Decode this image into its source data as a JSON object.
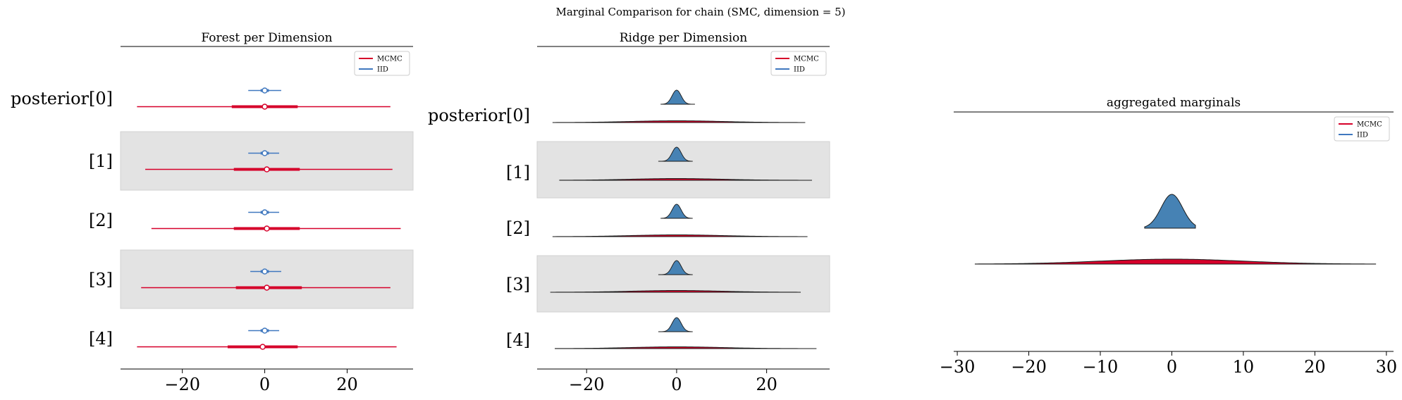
{
  "figure": {
    "suptitle": "Marginal Comparison for chain (SMC, dimension = 5)"
  },
  "colors": {
    "mcmc": "#d6002a",
    "iid": "#4078bf",
    "band": "#e3e3e3",
    "axis": "#000000"
  },
  "chart_data": [
    {
      "type": "forest",
      "title": "Forest per Dimension",
      "rows": [
        "posterior[0]",
        "[1]",
        "[2]",
        "[3]",
        "[4]"
      ],
      "shaded_rows": [
        1,
        3
      ],
      "xlim": [
        -35,
        36
      ],
      "xticks": [
        -20,
        0,
        20
      ],
      "xtick_labels": [
        "−20",
        "0",
        "20"
      ],
      "legend": {
        "placement": "upper right",
        "entries": [
          "MCMC",
          "IID"
        ]
      },
      "series": [
        {
          "name": "MCMC",
          "median": [
            0,
            0.5,
            0.5,
            0.5,
            -0.5
          ],
          "hdi_50": [
            [
              -8,
              8
            ],
            [
              -7.5,
              8.5
            ],
            [
              -7.5,
              8.5
            ],
            [
              -7,
              9
            ],
            [
              -9,
              8
            ]
          ],
          "hdi_94": [
            [
              -31,
              30.5
            ],
            [
              -29,
              31
            ],
            [
              -27.5,
              33
            ],
            [
              -30,
              30.5
            ],
            [
              -31,
              32
            ]
          ]
        },
        {
          "name": "IID",
          "median": [
            0,
            0,
            0,
            0,
            0
          ],
          "hdi_50": [
            [
              -1,
              1
            ],
            [
              -1,
              1
            ],
            [
              -1,
              1
            ],
            [
              -1,
              1
            ],
            [
              -1,
              1
            ]
          ],
          "hdi_94": [
            [
              -4,
              4
            ],
            [
              -4,
              3.5
            ],
            [
              -4,
              3.5
            ],
            [
              -3.5,
              4
            ],
            [
              -4,
              3.5
            ]
          ]
        }
      ]
    },
    {
      "type": "ridge",
      "title": "Ridge per Dimension",
      "rows": [
        "posterior[0]",
        "[1]",
        "[2]",
        "[3]",
        "[4]"
      ],
      "shaded_rows": [
        1,
        3
      ],
      "xlim": [
        -31,
        34
      ],
      "xticks": [
        -20,
        0,
        20
      ],
      "xtick_labels": [
        "−20",
        "0",
        "20"
      ],
      "legend": {
        "placement": "upper right",
        "entries": [
          "MCMC",
          "IID"
        ]
      },
      "series": [
        {
          "name": "MCMC",
          "sd": 10,
          "range": [
            [
              -27.5,
              28.5
            ],
            [
              -26,
              30
            ],
            [
              -27.5,
              29
            ],
            [
              -28,
              27.5
            ],
            [
              -27,
              31
            ]
          ]
        },
        {
          "name": "IID",
          "sd": 1,
          "range": [
            [
              -3.5,
              4
            ],
            [
              -4,
              3.5
            ],
            [
              -3.5,
              3.5
            ],
            [
              -4,
              3.5
            ],
            [
              -4,
              3.5
            ]
          ]
        }
      ]
    },
    {
      "type": "area",
      "title": "aggregated marginals",
      "xlim": [
        -30.5,
        31
      ],
      "xticks": [
        -30,
        -20,
        -10,
        0,
        10,
        20,
        30
      ],
      "xtick_labels": [
        "−30",
        "−20",
        "−10",
        "0",
        "10",
        "20",
        "30"
      ],
      "legend": {
        "placement": "upper right",
        "entries": [
          "MCMC",
          "IID"
        ]
      },
      "series": [
        {
          "name": "MCMC",
          "sd": 10,
          "range": [
            -27.5,
            28.5
          ]
        },
        {
          "name": "IID",
          "sd": 1.5,
          "range": [
            -3.8,
            3.3
          ]
        }
      ]
    }
  ]
}
